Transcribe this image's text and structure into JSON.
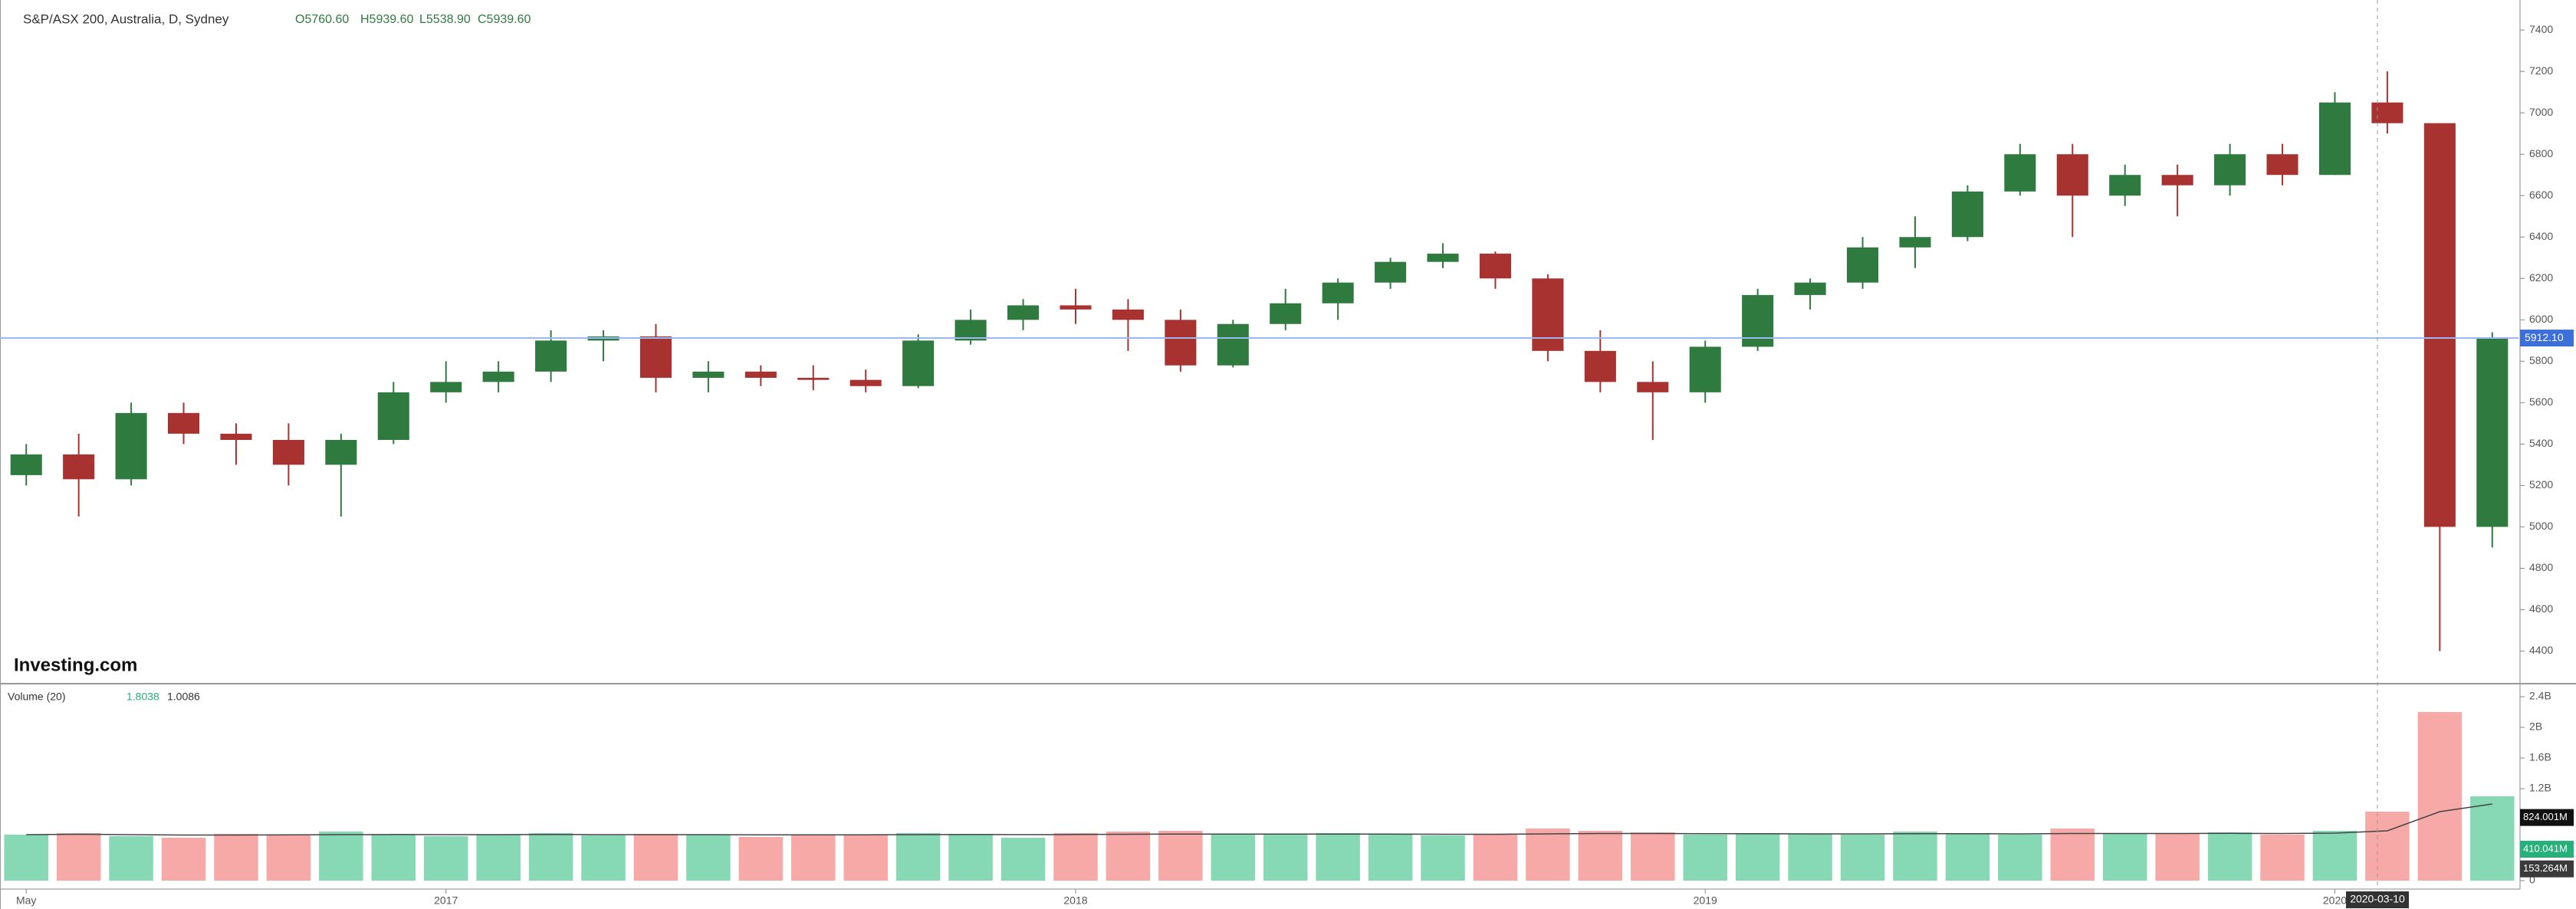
{
  "chart_data": {
    "type": "candlestick",
    "title": "S&P/ASX 200, Australia, D, Sydney",
    "ohlc_legend": [
      "O5760.60",
      "H5939.60",
      "L5538.90",
      "C5939.60"
    ],
    "brand": "Investing.com",
    "categories": [
      "May",
      null,
      null,
      null,
      null,
      null,
      null,
      null,
      "2017",
      null,
      null,
      null,
      null,
      null,
      null,
      null,
      null,
      null,
      null,
      null,
      "2018",
      null,
      null,
      null,
      null,
      null,
      null,
      null,
      null,
      null,
      null,
      null,
      "2019",
      null,
      null,
      null,
      null,
      null,
      null,
      null,
      null,
      null,
      null,
      null,
      "2020",
      null,
      null,
      null
    ],
    "open": [
      5250,
      5350,
      5230,
      5550,
      5450,
      5420,
      5300,
      5420,
      5650,
      5700,
      5750,
      5900,
      5920,
      5720,
      5750,
      5720,
      5710,
      5680,
      5900,
      6000,
      6070,
      6050,
      6000,
      5780,
      5980,
      6080,
      6180,
      6280,
      6320,
      6200,
      5850,
      5700,
      5650,
      5870,
      6120,
      6180,
      6350,
      6400,
      6620,
      6800,
      6600,
      6700,
      6650,
      6800,
      6700,
      7050,
      6950,
      5000
    ],
    "high": [
      5400,
      5450,
      5600,
      5600,
      5500,
      5500,
      5450,
      5700,
      5800,
      5800,
      5950,
      5950,
      5980,
      5800,
      5780,
      5780,
      5760,
      5930,
      6050,
      6100,
      6150,
      6100,
      6050,
      6000,
      6150,
      6200,
      6300,
      6370,
      6330,
      6220,
      5950,
      5800,
      5900,
      6150,
      6200,
      6400,
      6500,
      6650,
      6850,
      6850,
      6750,
      6750,
      6850,
      6850,
      7100,
      7200,
      6950,
      5940
    ],
    "low": [
      5200,
      5050,
      5200,
      5400,
      5300,
      5200,
      5050,
      5400,
      5600,
      5650,
      5700,
      5800,
      5650,
      5650,
      5680,
      5660,
      5650,
      5670,
      5880,
      5950,
      5980,
      5850,
      5750,
      5770,
      5950,
      6000,
      6150,
      6250,
      6150,
      5800,
      5650,
      5420,
      5600,
      5850,
      6050,
      6150,
      6250,
      6380,
      6600,
      6400,
      6550,
      6500,
      6600,
      6650,
      6700,
      6900,
      4400,
      4900
    ],
    "close": [
      5350,
      5230,
      5550,
      5450,
      5420,
      5300,
      5420,
      5650,
      5700,
      5750,
      5900,
      5920,
      5720,
      5750,
      5720,
      5710,
      5680,
      5900,
      6000,
      6070,
      6050,
      6000,
      5780,
      5980,
      6080,
      6180,
      6280,
      6320,
      6200,
      5850,
      5700,
      5650,
      5870,
      6120,
      6180,
      6350,
      6400,
      6620,
      6800,
      6600,
      6700,
      6650,
      6800,
      6700,
      7050,
      6950,
      5000,
      5912
    ],
    "up_color": "#2f7a3e",
    "down_color": "#a8322f",
    "ylim": [
      4250,
      7545
    ],
    "yticks": [
      4400,
      4600,
      4800,
      5000,
      5200,
      5400,
      5600,
      5800,
      6000,
      6200,
      6400,
      6600,
      6800,
      7000,
      7200,
      7400
    ],
    "price_tag": {
      "value": 5912.1,
      "label": "5912.10"
    },
    "crosshair_date": "2020-03-10",
    "volume": {
      "title": "Volume (20)",
      "legend_values": [
        "1.8038",
        "1.0086"
      ],
      "values": [
        600,
        620,
        580,
        560,
        610,
        590,
        640,
        600,
        580,
        600,
        620,
        590,
        610,
        600,
        570,
        590,
        600,
        620,
        610,
        560,
        620,
        640,
        650,
        600,
        610,
        620,
        600,
        590,
        610,
        680,
        650,
        630,
        600,
        620,
        610,
        600,
        640,
        620,
        600,
        680,
        620,
        610,
        630,
        600,
        650,
        900,
        2200,
        1100
      ],
      "ma": [
        600,
        605,
        600,
        595,
        595,
        597,
        600,
        602,
        600,
        600,
        602,
        600,
        600,
        600,
        598,
        597,
        598,
        600,
        602,
        600,
        602,
        605,
        608,
        607,
        607,
        608,
        607,
        605,
        605,
        610,
        615,
        615,
        612,
        612,
        610,
        610,
        612,
        612,
        610,
        615,
        615,
        615,
        617,
        615,
        620,
        650,
        900,
        1000
      ],
      "up_color": "#86d9b4",
      "down_color": "#f6a9a6",
      "ylim": [
        0,
        2540
      ],
      "yticks": [
        0,
        {
          "value": 1200,
          "label": "1.2B"
        },
        {
          "value": 1600,
          "label": "1.6B"
        },
        {
          "value": 2000,
          "label": "2B"
        },
        {
          "value": 2400,
          "label": "2.4B"
        }
      ],
      "tags": [
        {
          "value": 824.001,
          "label": "824.001M",
          "color": "#111111"
        },
        {
          "value": 410.041,
          "label": "410.041M",
          "color": "#26b07a"
        },
        {
          "value": 153.264,
          "label": "153.264M",
          "color": "#3a3a3a"
        }
      ]
    }
  }
}
